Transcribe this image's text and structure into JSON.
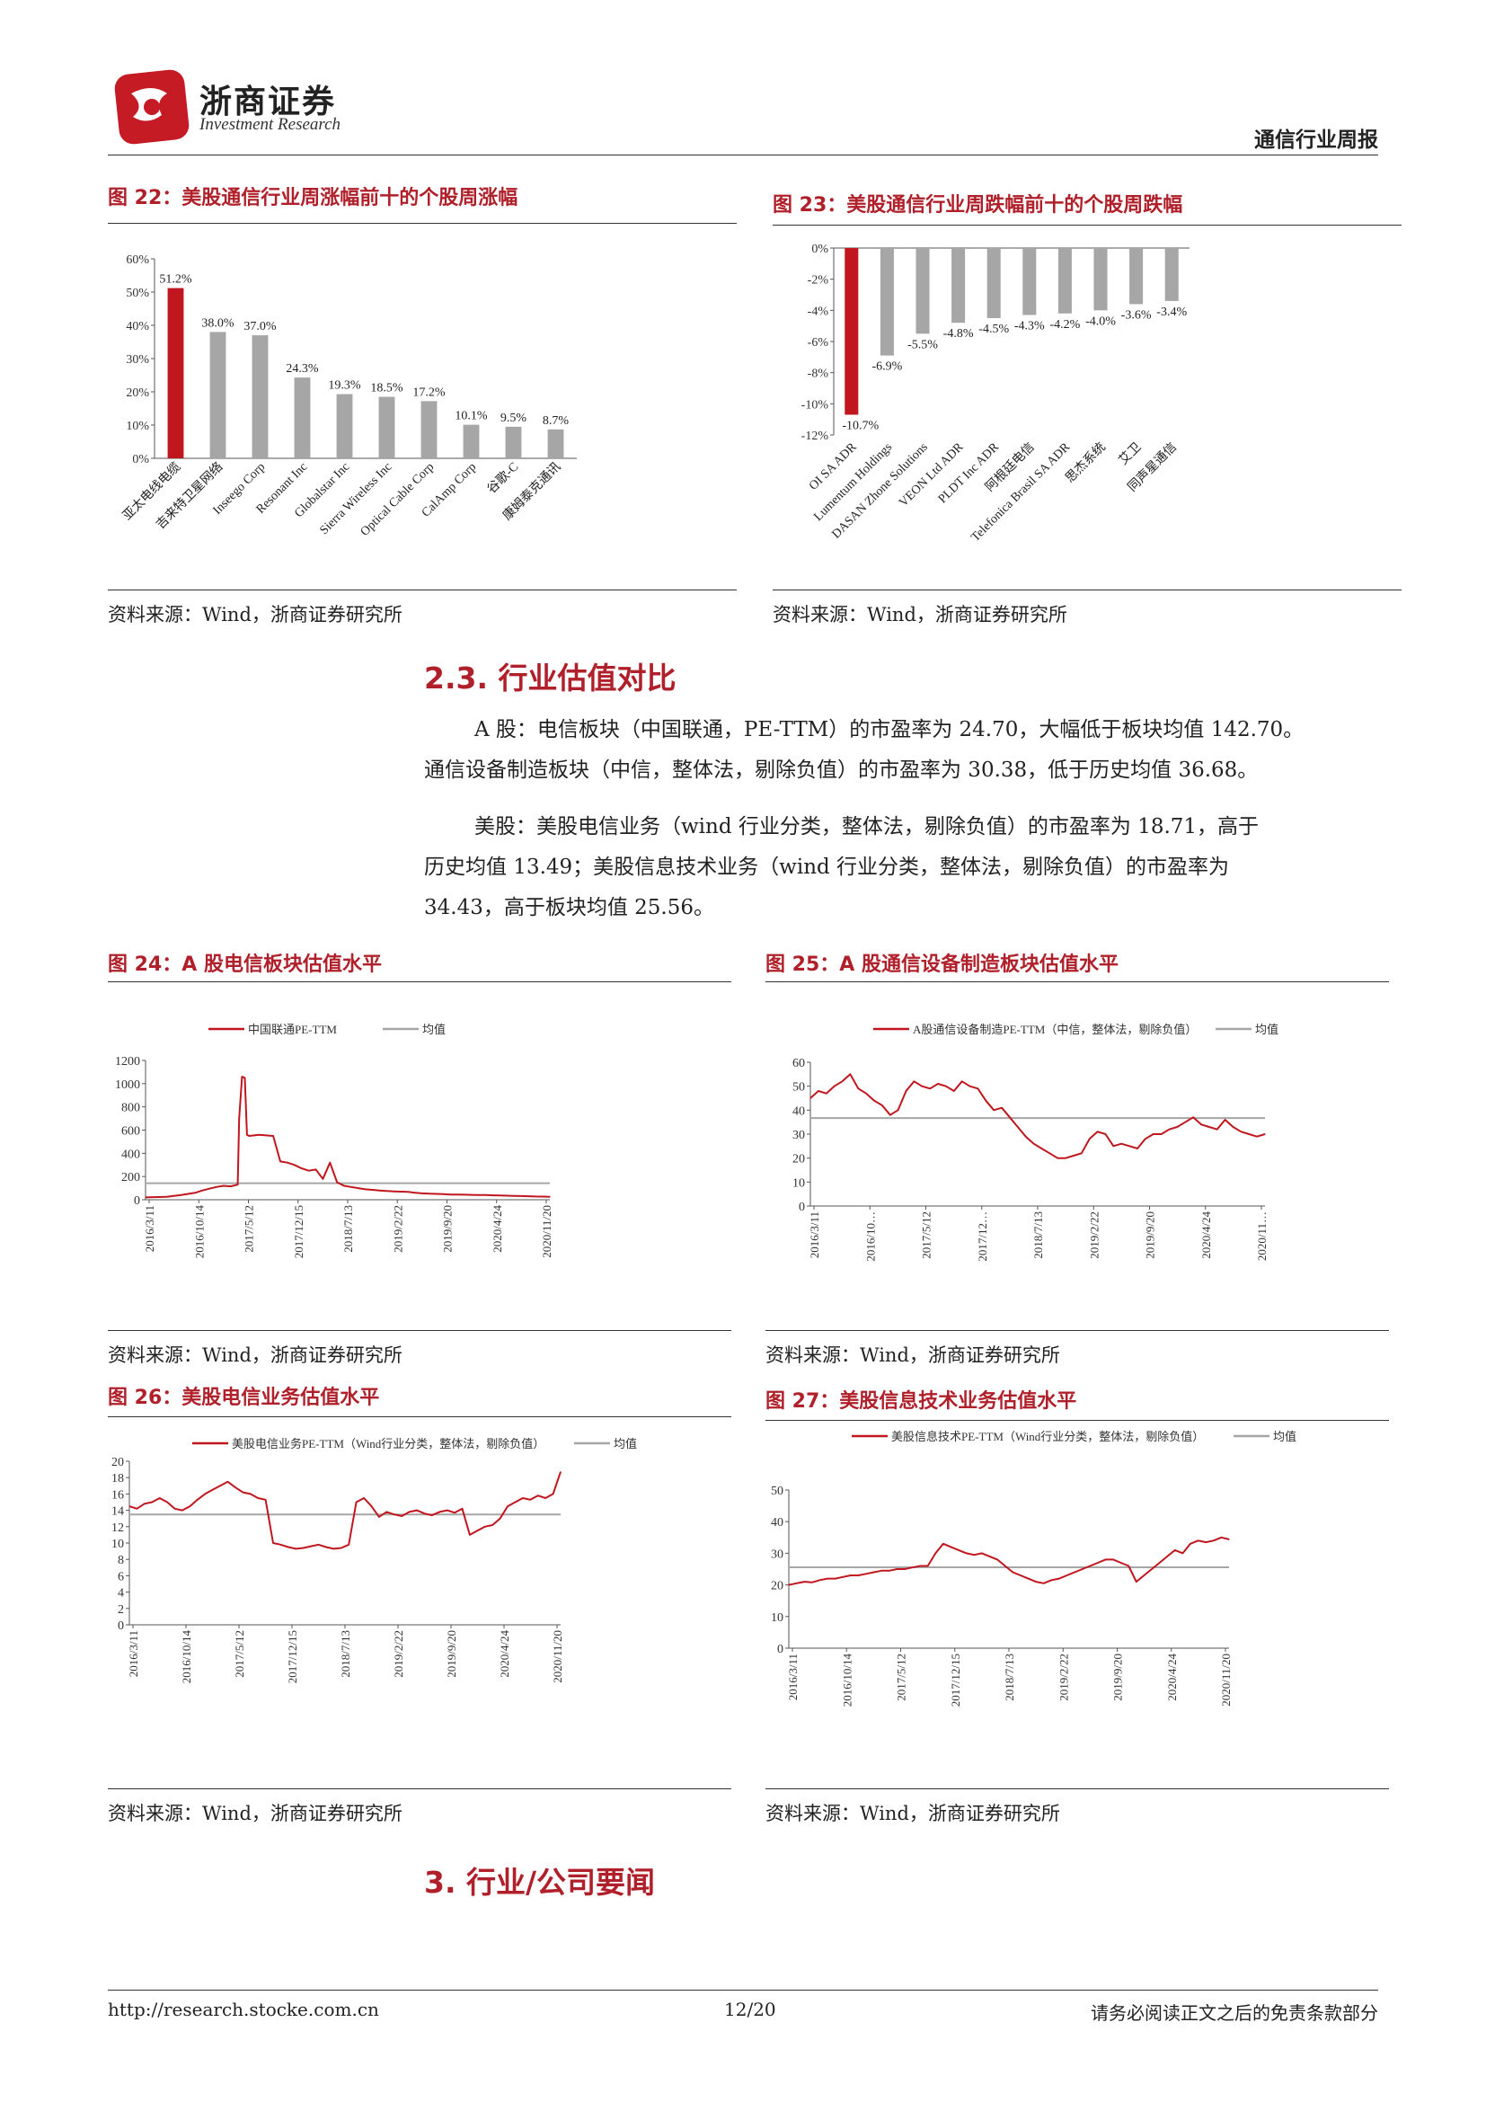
{
  "header": {
    "company": "浙商证券",
    "company_en": "Investment Research",
    "report_type": "通信行业周报"
  },
  "figures": {
    "fig22": {
      "title": "图 22：美股通信行业周涨幅前十的个股周涨幅",
      "source": "资料来源：Wind，浙商证券研究所"
    },
    "fig23": {
      "title": "图 23：美股通信行业周跌幅前十的个股周跌幅",
      "source": "资料来源：Wind，浙商证券研究所"
    },
    "fig24": {
      "title": "图 24：A 股电信板块估值水平",
      "source": "资料来源：Wind，浙商证券研究所"
    },
    "fig25": {
      "title": "图 25：A 股通信设备制造板块估值水平",
      "source": "资料来源：Wind，浙商证券研究所"
    },
    "fig26": {
      "title": "图 26：美股电信业务估值水平",
      "source": "资料来源：Wind，浙商证券研究所"
    },
    "fig27": {
      "title": "图 27：美股信息技术业务估值水平",
      "source": "资料来源：Wind，浙商证券研究所"
    }
  },
  "section": {
    "title": "2.3. 行业估值对比",
    "para1_line1": "A 股：电信板块（中国联通，PE-TTM）的市盈率为 24.70，大幅低于板块均值 142.70。",
    "para1_line2": "通信设备制造板块（中信，整体法，剔除负值）的市盈率为 30.38，低于历史均值 36.68。",
    "para2_line1": "美股：美股电信业务（wind 行业分类，整体法，剔除负值）的市盈率为 18.71，高于",
    "para2_line2": "历史均值 13.49；美股信息技术业务（wind 行业分类，整体法，剔除负值）的市盈率为",
    "para2_line3": "34.43，高于板块均值 25.56。"
  },
  "section3": {
    "title": "3. 行业/公司要闻"
  },
  "footer": {
    "url": "http://research.stocke.com.cn",
    "page": "12/20",
    "disclaimer": "请务必阅读正文之后的免责条款部分"
  },
  "chart_data": [
    {
      "id": "fig22",
      "type": "bar",
      "categories": [
        "亚太电线电缆",
        "吉来特卫星网络",
        "Inseego Corp",
        "Resonant Inc",
        "Globalstar Inc",
        "Sierra Wireless Inc",
        "Optical Cable Corp",
        "CalAmp Corp",
        "谷歌-C",
        "康姆泰克通讯"
      ],
      "values": [
        51.2,
        38.0,
        37.0,
        24.3,
        19.3,
        18.5,
        17.2,
        10.1,
        9.5,
        8.7
      ],
      "labels": [
        "51.2%",
        "38.0%",
        "37.0%",
        "24.3%",
        "19.3%",
        "18.5%",
        "17.2%",
        "10.1%",
        "9.5%",
        "8.7%"
      ],
      "yticks": [
        "0%",
        "10%",
        "20%",
        "30%",
        "40%",
        "50%",
        "60%"
      ],
      "ylim": [
        0,
        60
      ],
      "colors": {
        "highlight": "#c0161e",
        "bar": "#a6a6a6"
      }
    },
    {
      "id": "fig23",
      "type": "bar",
      "categories": [
        "OI SA ADR",
        "Lumentum Holdings",
        "DASAN Zhone Solutions",
        "VEON Ltd ADR",
        "PLDT Inc ADR",
        "阿根廷电信",
        "Telefonica Brasil SA ADR",
        "思杰系统",
        "艾卫",
        "同声星通信"
      ],
      "values": [
        -10.7,
        -6.9,
        -5.5,
        -4.8,
        -4.5,
        -4.3,
        -4.2,
        -4.0,
        -3.6,
        -3.4
      ],
      "labels": [
        "-10.7%",
        "-6.9%",
        "-5.5%",
        "-4.8%",
        "-4.5%",
        "-4.3%",
        "-4.2%",
        "-4.0%",
        "-3.6%",
        "-3.4%"
      ],
      "yticks": [
        "0%",
        "-2%",
        "-4%",
        "-6%",
        "-8%",
        "-10%",
        "-12%"
      ],
      "ylim": [
        -12,
        0
      ],
      "colors": {
        "highlight": "#c0161e",
        "bar": "#a6a6a6"
      }
    },
    {
      "id": "fig24",
      "type": "line",
      "legend": [
        "中国联通PE-TTM",
        "均值"
      ],
      "xticks": [
        "2016/3/11",
        "2016/10/14",
        "2017/5/12",
        "2017/12/15",
        "2018/7/13",
        "2019/2/22",
        "2019/9/20",
        "2020/4/24",
        "2020/11/20"
      ],
      "yticks": [
        "0",
        "200",
        "400",
        "600",
        "800",
        "1000",
        "1200"
      ],
      "ylim": [
        0,
        1200
      ],
      "mean": 142.7,
      "x": [
        0,
        3,
        5,
        7,
        8,
        9,
        10,
        11,
        12,
        13,
        13.2,
        13.6,
        14,
        14.3,
        14.6,
        16,
        18,
        19,
        20,
        21,
        22,
        23,
        24,
        25,
        26,
        27,
        28,
        29,
        30,
        31,
        32,
        33,
        34,
        35,
        36,
        37,
        38,
        39,
        40,
        41,
        42,
        43,
        44,
        45,
        46,
        47,
        48,
        49,
        50,
        51,
        52,
        53,
        54,
        55,
        56,
        57
      ],
      "y": [
        20,
        25,
        40,
        60,
        80,
        95,
        110,
        120,
        115,
        130,
        700,
        1060,
        1050,
        560,
        550,
        560,
        550,
        330,
        320,
        300,
        270,
        250,
        260,
        180,
        320,
        150,
        120,
        110,
        100,
        90,
        85,
        80,
        75,
        72,
        70,
        68,
        60,
        55,
        52,
        50,
        48,
        45,
        44,
        43,
        42,
        41,
        40,
        38,
        36,
        35,
        33,
        32,
        30,
        28,
        27,
        25
      ],
      "colors": {
        "line": "#c0161e",
        "mean": "#a6a6a6"
      }
    },
    {
      "id": "fig25",
      "type": "line",
      "legend": [
        "A股通信设备制造PE-TTM（中信，整体法，剔除负值）",
        "均值"
      ],
      "xticks": [
        "2016/3/11",
        "2016/10…",
        "2017/5/12",
        "2017/12…",
        "2018/7/13",
        "2019/2/22",
        "2019/9/20",
        "2020/4/24",
        "2020/11…"
      ],
      "yticks": [
        "0",
        "10",
        "20",
        "30",
        "40",
        "50",
        "60"
      ],
      "ylim": [
        0,
        60
      ],
      "mean": 36.68,
      "x": [
        0,
        1,
        2,
        3,
        4,
        5,
        6,
        7,
        8,
        9,
        10,
        11,
        12,
        13,
        14,
        15,
        16,
        17,
        18,
        19,
        20,
        21,
        22,
        23,
        24,
        25,
        26,
        27,
        28,
        29,
        30,
        31,
        32,
        33,
        34,
        35,
        36,
        37,
        38,
        39,
        40,
        41,
        42,
        43,
        44,
        45,
        46,
        47,
        48,
        49,
        50,
        51,
        52,
        53,
        54,
        55,
        56,
        57
      ],
      "y": [
        45,
        48,
        47,
        50,
        52,
        55,
        49,
        47,
        44,
        42,
        38,
        40,
        48,
        52,
        50,
        49,
        51,
        50,
        48,
        52,
        50,
        49,
        44,
        40,
        41,
        37,
        33,
        29,
        26,
        24,
        22,
        20,
        20,
        21,
        22,
        28,
        31,
        30,
        25,
        26,
        25,
        24,
        28,
        30,
        30,
        32,
        33,
        35,
        37,
        34,
        33,
        32,
        36,
        33,
        31,
        30,
        29,
        30
      ],
      "colors": {
        "line": "#c0161e",
        "mean": "#a6a6a6"
      }
    },
    {
      "id": "fig26",
      "type": "line",
      "legend": [
        "美股电信业务PE-TTM（Wind行业分类，整体法，剔除负值）",
        "均值"
      ],
      "xticks": [
        "2016/3/11",
        "2016/10/14",
        "2017/5/12",
        "2017/12/15",
        "2018/7/13",
        "2019/2/22",
        "2019/9/20",
        "2020/4/24",
        "2020/11/20"
      ],
      "yticks": [
        "0",
        "2",
        "4",
        "6",
        "8",
        "10",
        "12",
        "14",
        "16",
        "18",
        "20"
      ],
      "ylim": [
        0,
        20
      ],
      "mean": 13.49,
      "x": [
        0,
        1,
        2,
        3,
        4,
        5,
        6,
        7,
        8,
        9,
        10,
        11,
        12,
        13,
        14,
        15,
        16,
        17,
        18,
        19,
        20,
        21,
        22,
        23,
        24,
        25,
        26,
        27,
        28,
        29,
        30,
        31,
        32,
        33,
        34,
        35,
        36,
        37,
        38,
        39,
        40,
        41,
        42,
        43,
        44,
        45,
        46,
        47,
        48,
        49,
        50,
        51,
        52,
        53,
        54,
        55,
        56,
        57
      ],
      "y": [
        14.5,
        14.2,
        14.8,
        15,
        15.5,
        15,
        14.2,
        14,
        14.5,
        15.3,
        16,
        16.5,
        17,
        17.5,
        16.8,
        16.2,
        16,
        15.5,
        15.3,
        10,
        9.8,
        9.5,
        9.3,
        9.4,
        9.6,
        9.8,
        9.5,
        9.3,
        9.4,
        9.8,
        15,
        15.5,
        14.5,
        13.2,
        13.8,
        13.5,
        13.3,
        13.8,
        14,
        13.6,
        13.4,
        13.8,
        14,
        13.7,
        14.2,
        11,
        11.5,
        12,
        12.2,
        13,
        14.5,
        15,
        15.5,
        15.3,
        15.8,
        15.5,
        16,
        18.7
      ],
      "colors": {
        "line": "#c0161e",
        "mean": "#a6a6a6"
      }
    },
    {
      "id": "fig27",
      "type": "line",
      "legend": [
        "美股信息技术PE-TTM（Wind行业分类，整体法，剔除负值）",
        "均值"
      ],
      "xticks": [
        "2016/3/11",
        "2016/10/14",
        "2017/5/12",
        "2017/12/15",
        "2018/7/13",
        "2019/2/22",
        "2019/9/20",
        "2020/4/24",
        "2020/11/20"
      ],
      "yticks": [
        "0",
        "10",
        "20",
        "30",
        "40",
        "50"
      ],
      "ylim": [
        0,
        50
      ],
      "mean": 25.56,
      "x": [
        0,
        1,
        2,
        3,
        4,
        5,
        6,
        7,
        8,
        9,
        10,
        11,
        12,
        13,
        14,
        15,
        16,
        17,
        18,
        19,
        20,
        21,
        22,
        23,
        24,
        25,
        26,
        27,
        28,
        29,
        30,
        31,
        32,
        33,
        34,
        35,
        36,
        37,
        38,
        39,
        40,
        41,
        42,
        43,
        44,
        45,
        46,
        47,
        48,
        49,
        50,
        51,
        52,
        53,
        54,
        55,
        56,
        57
      ],
      "y": [
        20,
        20.5,
        21,
        20.8,
        21.5,
        22,
        22,
        22.5,
        23,
        23,
        23.5,
        24,
        24.5,
        24.5,
        25,
        25,
        25.5,
        26,
        26,
        30,
        33,
        32,
        31,
        30,
        29.5,
        30,
        29,
        28,
        26,
        24,
        23,
        22,
        21,
        20.5,
        21.5,
        22,
        23,
        24,
        25,
        26,
        27,
        28,
        28,
        27,
        26,
        21,
        23,
        25,
        27,
        29,
        31,
        30,
        33,
        34,
        33.5,
        34,
        35,
        34.4
      ],
      "colors": {
        "line": "#c0161e",
        "mean": "#a6a6a6"
      }
    }
  ]
}
